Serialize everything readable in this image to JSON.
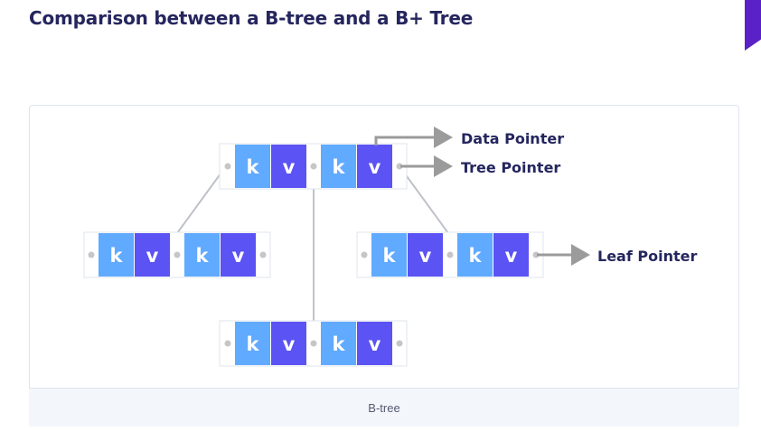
{
  "title": "Comparison between a B-tree and a B+ Tree",
  "diagram": {
    "caption": "B-tree",
    "key_label": "k",
    "value_label": "v",
    "labels": {
      "data_pointer": "Data Pointer",
      "tree_pointer": "Tree Pointer",
      "leaf_pointer": "Leaf Pointer"
    },
    "colors": {
      "key_cell": "#60aaff",
      "value_cell": "#5b53f3",
      "node_border": "#dfe4ee",
      "edge": "#bfc2c9",
      "arrow": "#9b9b9b",
      "pointer_dot": "#c6c6c6",
      "title_text": "#25265e"
    }
  }
}
